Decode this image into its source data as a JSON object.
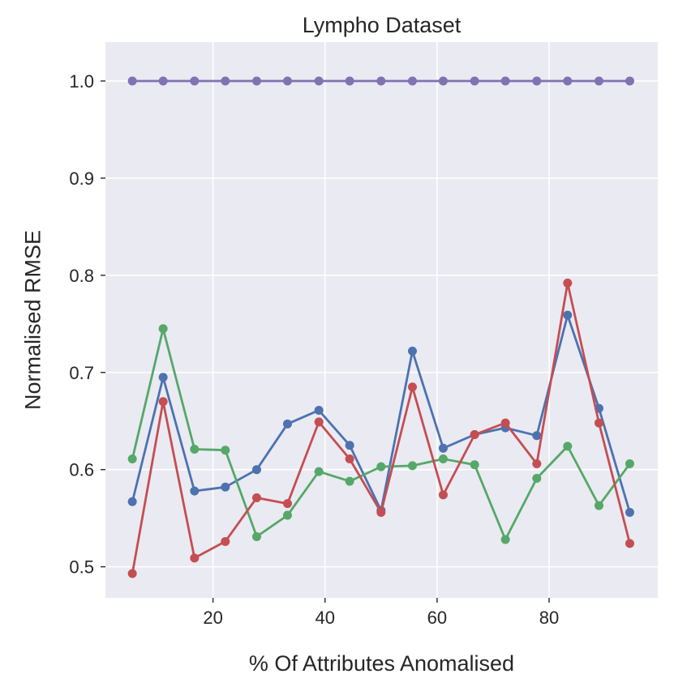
{
  "chart_data": {
    "type": "line",
    "title": "Lympho Dataset",
    "xlabel": "% Of Attributes Anomalised",
    "ylabel": "Normalised RMSE",
    "xlim": [
      0.8,
      99.4
    ],
    "ylim": [
      0.468,
      1.04
    ],
    "xticks": [
      20,
      40,
      60,
      80
    ],
    "yticks": [
      0.5,
      0.6,
      0.7,
      0.8,
      0.9,
      1.0
    ],
    "ytick_labels": [
      "0.5",
      "0.6",
      "0.7",
      "0.8",
      "0.9",
      "1.0"
    ],
    "grid": true,
    "background": "#eaeaf2",
    "x": [
      5.6,
      11.1,
      16.7,
      22.2,
      27.8,
      33.3,
      38.9,
      44.4,
      50.0,
      55.6,
      61.1,
      66.7,
      72.2,
      77.8,
      83.3,
      88.9,
      94.4
    ],
    "series": [
      {
        "name": "series-blue",
        "color": "#4c72b0",
        "values": [
          0.567,
          0.695,
          0.578,
          0.582,
          0.6,
          0.647,
          0.661,
          0.625,
          0.558,
          0.722,
          0.622,
          0.636,
          0.643,
          0.635,
          0.759,
          0.663,
          0.556
        ]
      },
      {
        "name": "series-green",
        "color": "#55a868",
        "values": [
          0.611,
          0.745,
          0.621,
          0.62,
          0.531,
          0.553,
          0.598,
          0.588,
          0.603,
          0.604,
          0.611,
          0.605,
          0.528,
          0.591,
          0.624,
          0.563,
          0.606
        ]
      },
      {
        "name": "series-red",
        "color": "#c44e52",
        "values": [
          0.493,
          0.67,
          0.509,
          0.526,
          0.571,
          0.565,
          0.649,
          0.611,
          0.556,
          0.685,
          0.574,
          0.636,
          0.648,
          0.606,
          0.792,
          0.648,
          0.524
        ]
      },
      {
        "name": "series-purple",
        "color": "#8172b2",
        "values": [
          1.0,
          1.0,
          1.0,
          1.0,
          1.0,
          1.0,
          1.0,
          1.0,
          1.0,
          1.0,
          1.0,
          1.0,
          1.0,
          1.0,
          1.0,
          1.0,
          1.0
        ]
      }
    ]
  }
}
